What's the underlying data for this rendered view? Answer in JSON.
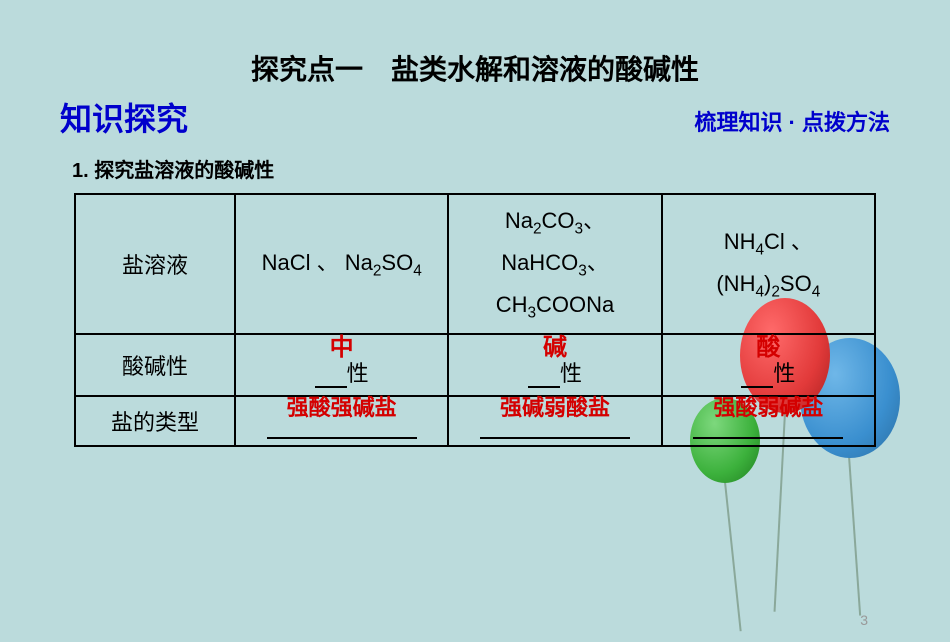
{
  "title": "探究点一　盐类水解和溶液的酸碱性",
  "subtitle_left": "知识探究",
  "subtitle_right": "梳理知识 · 点拨方法",
  "section": "1. 探究盐溶液的酸碱性",
  "table": {
    "row_labels": [
      "盐溶液",
      "酸碱性",
      "盐的类型"
    ],
    "cols": [
      {
        "solutions_html": "NaCl 、 Na<sub>2</sub>SO<sub>4</sub>",
        "acidbase_red": "中",
        "acidbase_suffix": "性",
        "type_red": "强酸强碱盐"
      },
      {
        "solutions_html": "Na<sub>2</sub>CO<sub>3</sub>、<br>NaHCO<sub>3</sub>、<br>CH<sub>3</sub>COONa",
        "acidbase_red": "碱",
        "acidbase_suffix": "性",
        "type_red": "强碱弱酸盐"
      },
      {
        "solutions_html": "NH<sub>4</sub>Cl 、<br>(NH<sub>4</sub>)<sub>2</sub>SO<sub>4</sub>",
        "acidbase_red": "酸",
        "acidbase_suffix": "性",
        "type_red": "强酸弱碱盐"
      }
    ]
  },
  "page_number": "3",
  "colors": {
    "background": "#bbdbdc",
    "title_black": "#000000",
    "blue": "#0000cc",
    "red": "#d40000",
    "border": "#000000"
  },
  "balloons": {
    "blue": {
      "color": "#3a8fcf"
    },
    "red": {
      "color": "#e23a3a"
    },
    "green": {
      "color": "#3cb13c"
    }
  }
}
